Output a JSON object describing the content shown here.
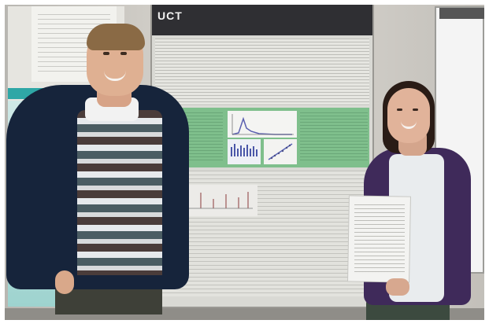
{
  "scene": {
    "left_poster": {
      "banner_title": ""
    },
    "main_poster": {
      "logo_text": "UCT",
      "logo_subtext": "",
      "title_text": ""
    },
    "right_panel": {
      "header_text": ""
    }
  },
  "colors": {
    "main_poster_green": "#7fbf8c",
    "left_poster_banner": "#2fa7a6",
    "main_poster_header": "#2f2f33",
    "man_jacket": "#16243b",
    "woman_cardigan": "#3f2a5a"
  }
}
